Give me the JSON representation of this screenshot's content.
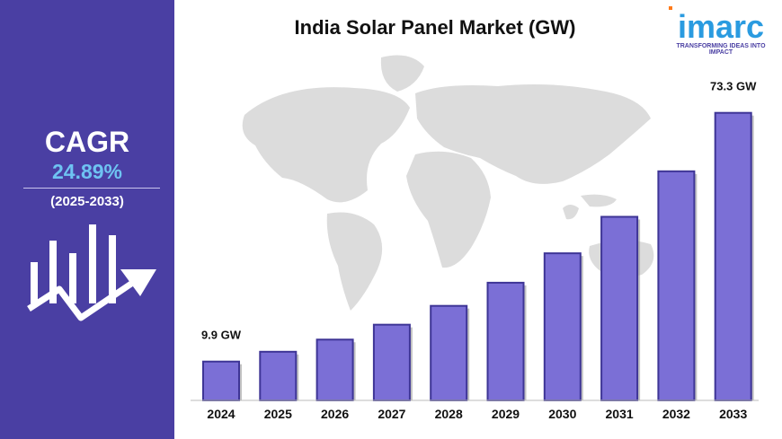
{
  "sidebar": {
    "cagr_label": "CAGR",
    "cagr_value": "24.89%",
    "cagr_period": "(2025-2033)"
  },
  "brand": {
    "name": "imarc",
    "tagline": "TRANSFORMING IDEAS INTO IMPACT"
  },
  "colors": {
    "sidebar": "#4a3fa3",
    "bar": "#7b6fd6",
    "bar_edge": "#3e3596",
    "cagr_value": "#6ec3f2",
    "map": "#dcdcdc"
  },
  "chart_data": {
    "type": "bar",
    "title": "India Solar Panel Market (GW)",
    "xlabel": "",
    "ylabel": "",
    "categories": [
      "2024",
      "2025",
      "2026",
      "2027",
      "2028",
      "2029",
      "2030",
      "2031",
      "2032",
      "2033"
    ],
    "values": [
      9.9,
      12.4,
      15.5,
      19.3,
      24.1,
      30.0,
      37.5,
      46.8,
      58.4,
      73.3
    ],
    "data_labels": [
      {
        "index": 0,
        "text": "9.9 GW"
      },
      {
        "index": 9,
        "text": "73.3 GW"
      }
    ],
    "ylim": [
      0,
      83.3
    ],
    "grid": false,
    "legend": "none"
  }
}
